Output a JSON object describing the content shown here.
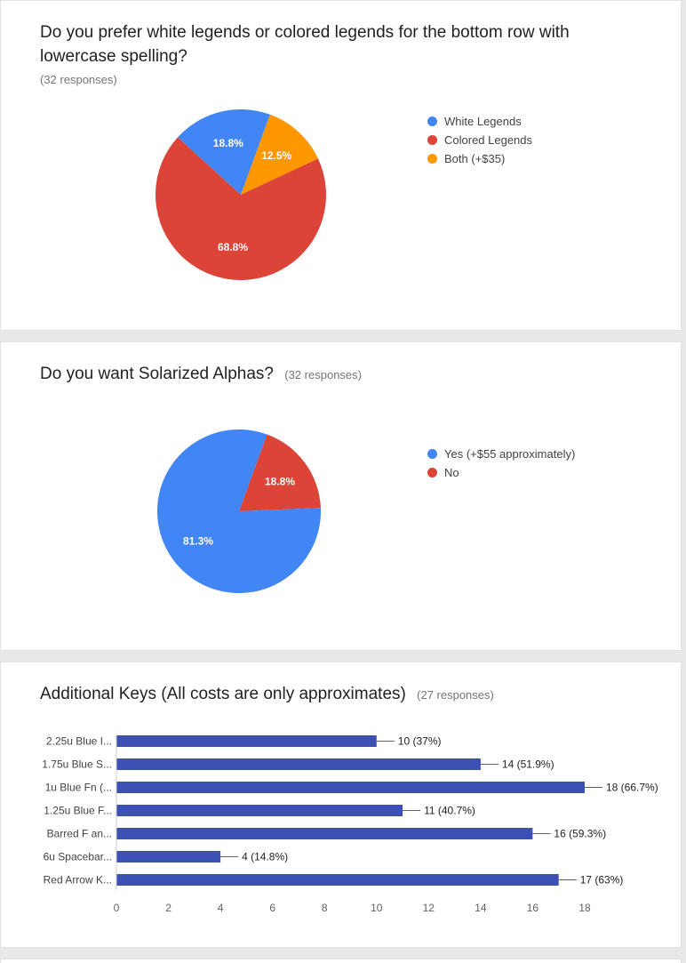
{
  "cards": [
    {
      "title": "Do you prefer white legends or colored legends for the bottom row with lowercase spelling?",
      "responses": "(32 responses)",
      "chart_data": {
        "type": "pie",
        "labels": [
          "White Legends",
          "Colored Legends",
          "Both (+$35)"
        ],
        "values": [
          18.8,
          68.8,
          12.5
        ],
        "slice_labels": [
          "18.8%",
          "68.8%",
          "12.5%"
        ],
        "colors": [
          "#4285f4",
          "#db4437",
          "#ff9800"
        ],
        "legend_position": "right",
        "start_angle": 20
      }
    },
    {
      "title": "Do you want Solarized Alphas?",
      "responses": "(32 responses)",
      "chart_data": {
        "type": "pie",
        "labels": [
          "Yes (+$55 approximately)",
          "No"
        ],
        "values": [
          81.3,
          18.8
        ],
        "slice_labels": [
          "81.3%",
          "18.8%"
        ],
        "colors": [
          "#4285f4",
          "#db4437"
        ],
        "legend_position": "right",
        "start_angle": 20
      }
    },
    {
      "title": "Additional Keys (All costs are only approximates)",
      "responses": "(27 responses)",
      "chart_data": {
        "type": "bar",
        "orientation": "horizontal",
        "categories": [
          "2.25u Blue I...",
          "1.75u Blue S...",
          "1u Blue Fn (...",
          "1.25u Blue F...",
          "Barred F an...",
          "6u Spacebar...",
          "Red Arrow K..."
        ],
        "values": [
          10,
          14,
          18,
          11,
          16,
          4,
          17
        ],
        "value_labels": [
          "10 (37%)",
          "14 (51.9%)",
          "18 (66.7%)",
          "11 (40.7%)",
          "16 (59.3%)",
          "4 (14.8%)",
          "17 (63%)"
        ],
        "x_ticks": [
          0,
          2,
          4,
          6,
          8,
          10,
          12,
          14,
          16,
          18
        ],
        "xlim": [
          0,
          18
        ],
        "bar_color": "#3d51b5",
        "grid": false
      }
    }
  ]
}
